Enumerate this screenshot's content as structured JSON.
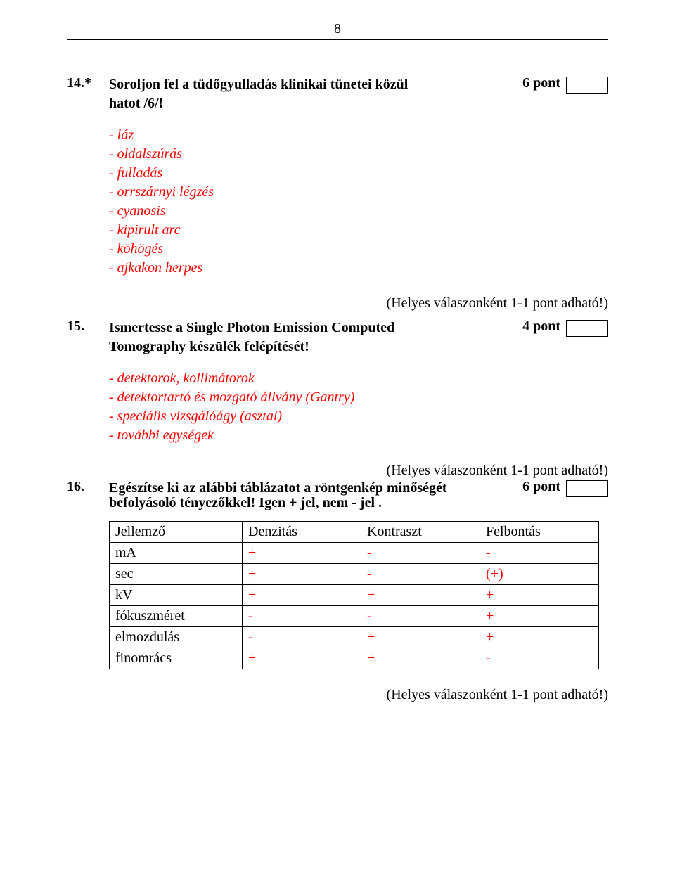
{
  "page_number": "8",
  "note_text": "(Helyes válaszonként 1-1 pont adható!)",
  "questions": [
    {
      "num": "14.*",
      "text_line1": "Soroljon fel a tüdőgyulladás klinikai tünetei közül",
      "text_line2": "hatot /6/!",
      "points": "6 pont",
      "answers": [
        "- láz",
        "- oldalszúrás",
        "- fulladás",
        "- orrszárnyi légzés",
        "- cyanosis",
        "- kipirult arc",
        "- köhögés",
        "- ajkakon herpes"
      ]
    },
    {
      "num": "15.",
      "text_line1": "Ismertesse a Single Photon Emission Computed",
      "text_line2": "Tomography készülék felépítését!",
      "points": "4 pont",
      "answers": [
        "- detektorok, kollimátorok",
        "- detektortartó és mozgató állvány (Gantry)",
        "- speciális vizsgálóágy (asztal)",
        "- további egységek"
      ]
    },
    {
      "num": "16.",
      "text_line1": "Egészítse ki az alábbi táblázatot a röntgenkép minőségét",
      "text_line2": "befolyásoló tényezőkkel! Igen + jel, nem - jel .",
      "points": "6 pont"
    }
  ],
  "table": {
    "headers": [
      "Jellemző",
      "Denzitás",
      "Kontraszt",
      "Felbontás"
    ],
    "rows": [
      {
        "label": "mA",
        "cells": [
          "+",
          "-",
          "-"
        ]
      },
      {
        "label": "sec",
        "cells": [
          "+",
          "-",
          "(+)"
        ]
      },
      {
        "label": "kV",
        "cells": [
          "+",
          "+",
          "+"
        ]
      },
      {
        "label": "fókuszméret",
        "cells": [
          "-",
          "-",
          "+"
        ]
      },
      {
        "label": "elmozdulás",
        "cells": [
          "-",
          "+",
          "+"
        ]
      },
      {
        "label": "finomrács",
        "cells": [
          "+",
          "+",
          "-"
        ]
      }
    ]
  }
}
